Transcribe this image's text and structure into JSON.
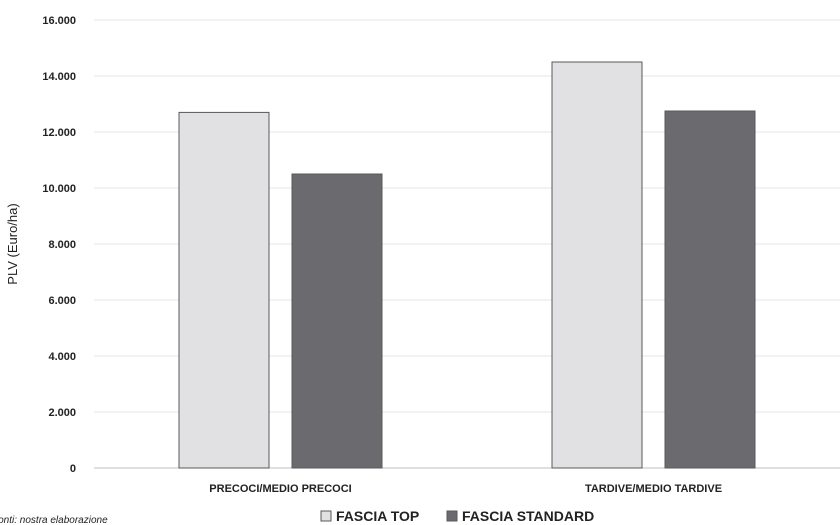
{
  "chart_data": {
    "type": "bar",
    "title": "",
    "xlabel": "",
    "ylabel": "PLV (Euro/ha)",
    "categories": [
      "PRECOCI/MEDIO PRECOCI",
      "TARDIVE/MEDIO TARDIVE"
    ],
    "series": [
      {
        "name": "FASCIA TOP",
        "values": [
          12700,
          14500
        ],
        "color": "#e1e1e3"
      },
      {
        "name": "FASCIA STANDARD",
        "values": [
          10500,
          12750
        ],
        "color": "#6b6b6f"
      }
    ],
    "ylim": [
      0,
      16000
    ],
    "yticks": [
      "0",
      "2.000",
      "4.000",
      "6.000",
      "8.000",
      "10.000",
      "12.000",
      "14.000",
      "16.000"
    ],
    "grid": true,
    "legend_position": "bottom"
  },
  "source_note": "Fonti: nostra elaborazione"
}
